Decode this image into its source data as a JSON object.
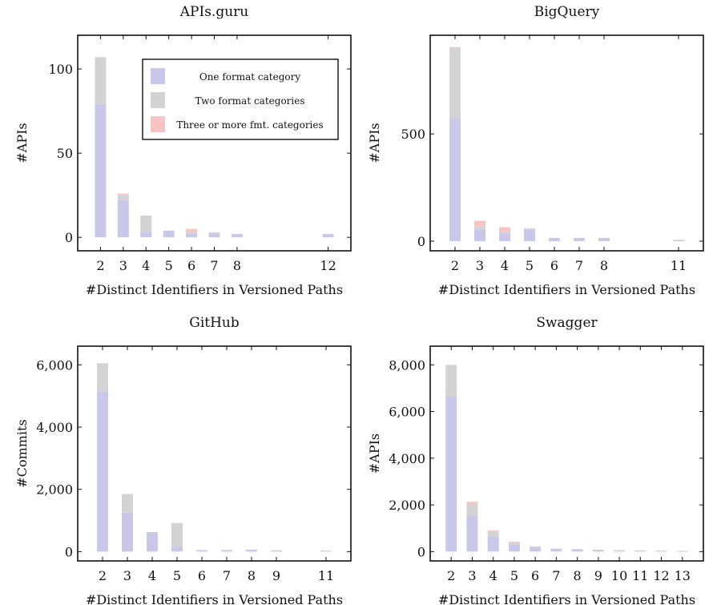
{
  "colors": {
    "one": "#c9c8ea",
    "two": "#d3d3d3",
    "three": "#f7c3c3"
  },
  "legend": [
    "One format category",
    "Two format categories",
    "Three or more fmt. categories"
  ],
  "chart_data": [
    {
      "type": "bar",
      "title": "APIs.guru",
      "xlabel": "#Distinct Identifiers in Versioned Paths",
      "ylabel": "#APIs",
      "x": [
        2,
        3,
        4,
        5,
        6,
        7,
        8,
        12
      ],
      "xticks": [
        2,
        3,
        4,
        5,
        6,
        7,
        8,
        12
      ],
      "xlim": [
        1,
        13
      ],
      "ylim": [
        -8,
        120
      ],
      "yticks": [
        0,
        50,
        100
      ],
      "ytick_labels": [
        "0",
        "50",
        "100"
      ],
      "legend_position": "top-right",
      "series": [
        {
          "name": "One format category",
          "values": [
            79,
            22,
            3,
            4,
            2,
            2,
            2,
            2
          ]
        },
        {
          "name": "Two format categories",
          "values": [
            28,
            3,
            10,
            0,
            1,
            1,
            0,
            0
          ]
        },
        {
          "name": "Three or more fmt. categories",
          "values": [
            0,
            1,
            0,
            0,
            2,
            0,
            0,
            0
          ]
        }
      ]
    },
    {
      "type": "bar",
      "title": "BigQuery",
      "xlabel": "#Distinct Identifiers in Versioned Paths",
      "ylabel": "#APIs",
      "x": [
        2,
        3,
        4,
        5,
        6,
        7,
        8,
        11
      ],
      "xticks": [
        2,
        3,
        4,
        5,
        6,
        7,
        8,
        11
      ],
      "xlim": [
        1,
        12
      ],
      "ylim": [
        -45,
        960
      ],
      "yticks": [
        0,
        500
      ],
      "ytick_labels": [
        "0",
        "500"
      ],
      "series": [
        {
          "name": "One format category",
          "values": [
            570,
            55,
            35,
            55,
            15,
            15,
            15,
            6
          ]
        },
        {
          "name": "Two format categories",
          "values": [
            330,
            15,
            10,
            5,
            0,
            0,
            0,
            0
          ]
        },
        {
          "name": "Three or more fmt. categories",
          "values": [
            5,
            25,
            20,
            0,
            0,
            0,
            0,
            0
          ]
        }
      ]
    },
    {
      "type": "bar",
      "title": "GitHub",
      "xlabel": "#Distinct Identifiers in Versioned Paths",
      "ylabel": "#Commits",
      "x": [
        2,
        3,
        4,
        5,
        6,
        7,
        8,
        9,
        11
      ],
      "xticks": [
        2,
        3,
        4,
        5,
        6,
        7,
        8,
        9,
        11
      ],
      "xlim": [
        1,
        12
      ],
      "ylim": [
        -300,
        6600
      ],
      "yticks": [
        0,
        2000,
        4000,
        6000
      ],
      "ytick_labels": [
        "0",
        "2,000",
        "4,000",
        "6,000"
      ],
      "series": [
        {
          "name": "One format category",
          "values": [
            5150,
            1250,
            620,
            180,
            50,
            50,
            60,
            40,
            30
          ]
        },
        {
          "name": "Two format categories",
          "values": [
            900,
            600,
            10,
            740,
            0,
            0,
            0,
            0,
            0
          ]
        },
        {
          "name": "Three or more fmt. categories",
          "values": [
            0,
            0,
            0,
            0,
            0,
            0,
            0,
            0,
            0
          ]
        }
      ]
    },
    {
      "type": "bar",
      "title": "Swagger",
      "xlabel": "#Distinct Identifiers in Versioned Paths",
      "ylabel": "#APIs",
      "x": [
        2,
        3,
        4,
        5,
        6,
        7,
        8,
        9,
        10,
        11,
        12,
        13
      ],
      "xticks": [
        2,
        3,
        4,
        5,
        6,
        7,
        8,
        9,
        10,
        11,
        12,
        13
      ],
      "xlim": [
        1,
        14
      ],
      "ylim": [
        -400,
        8800
      ],
      "yticks": [
        0,
        2000,
        4000,
        6000,
        8000
      ],
      "ytick_labels": [
        "0",
        "2,000",
        "4,000",
        "6,000",
        "8,000"
      ],
      "series": [
        {
          "name": "One format category",
          "values": [
            6650,
            1550,
            650,
            300,
            170,
            110,
            90,
            70,
            50,
            40,
            30,
            20
          ]
        },
        {
          "name": "Two format categories",
          "values": [
            1350,
            500,
            200,
            100,
            50,
            20,
            20,
            10,
            10,
            10,
            10,
            10
          ]
        },
        {
          "name": "Three or more fmt. categories",
          "values": [
            0,
            80,
            50,
            20,
            0,
            0,
            0,
            0,
            0,
            0,
            0,
            0
          ]
        }
      ]
    }
  ]
}
